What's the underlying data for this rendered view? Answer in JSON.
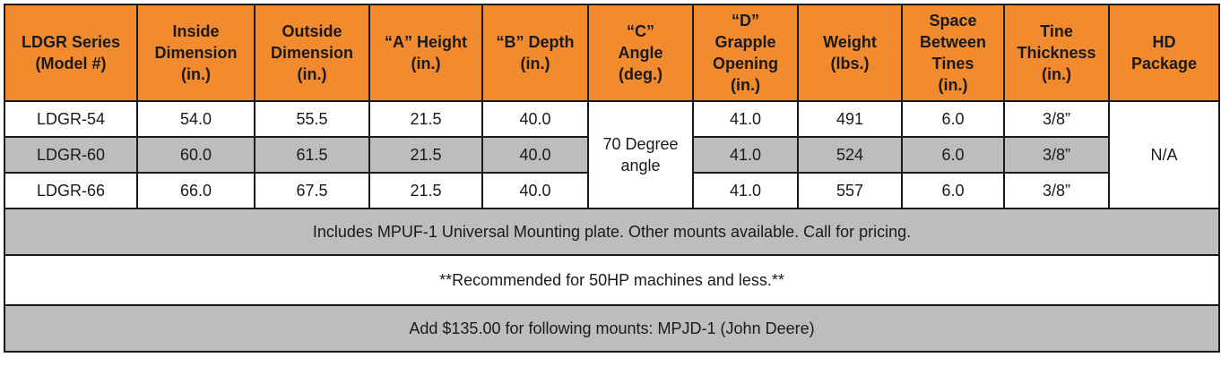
{
  "headers": [
    [
      "LDGR Series",
      "(Model #)"
    ],
    [
      "Inside",
      "Dimension",
      "(in.)"
    ],
    [
      "Outside",
      "Dimension",
      "(in.)"
    ],
    [
      "“A” Height",
      "(in.)"
    ],
    [
      "“B” Depth",
      "(in.)"
    ],
    [
      "“C”",
      "Angle",
      "(deg.)"
    ],
    [
      "“D”",
      "Grapple",
      "Opening",
      "(in.)"
    ],
    [
      "Weight",
      "(lbs.)"
    ],
    [
      "Space",
      "Between",
      "Tines",
      "(in.)"
    ],
    [
      "Tine",
      "Thickness",
      "(in.)"
    ],
    [
      "HD",
      "Package"
    ]
  ],
  "rows": [
    {
      "model": "LDGR-54",
      "inside": "54.0",
      "outside": "55.5",
      "a_height": "21.5",
      "b_depth": "40.0",
      "d_opening": "41.0",
      "weight": "491",
      "spacing": "6.0",
      "tine": "3/8”"
    },
    {
      "model": "LDGR-60",
      "inside": "60.0",
      "outside": "61.5",
      "a_height": "21.5",
      "b_depth": "40.0",
      "d_opening": "41.0",
      "weight": "524",
      "spacing": "6.0",
      "tine": "3/8”"
    },
    {
      "model": "LDGR-66",
      "inside": "66.0",
      "outside": "67.5",
      "a_height": "21.5",
      "b_depth": "40.0",
      "d_opening": "41.0",
      "weight": "557",
      "spacing": "6.0",
      "tine": "3/8”"
    }
  ],
  "c_angle": [
    "70 Degree",
    "angle"
  ],
  "hd_package": "N/A",
  "notes": [
    "Includes MPUF-1 Universal Mounting plate. Other mounts available. Call for pricing.",
    "**Recommended for 50HP machines and less.**",
    "Add $135.00 for following mounts: MPJD-1 (John Deere)"
  ],
  "colors": {
    "header": "#f28a2e",
    "grey_row": "#bdbdbd",
    "border": "#1a1a1a"
  }
}
